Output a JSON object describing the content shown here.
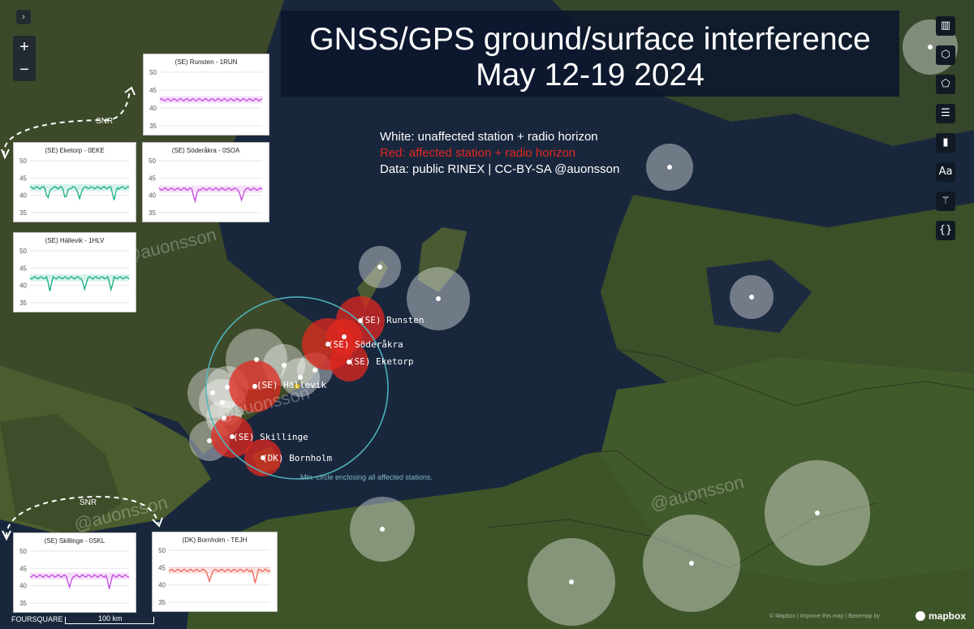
{
  "title": {
    "line1": "GNSS/GPS ground/surface interference",
    "line2": "May 12-19 2024"
  },
  "legend": {
    "white": "White: unaffected station + radio horizon",
    "red": "Red: affected station + radio horizon",
    "data": "Data: public RINEX | CC-BY-SA @auonsson"
  },
  "controls": {
    "expand": "›",
    "zoom_in": "+",
    "zoom_out": "−"
  },
  "toolbar": [
    {
      "name": "book-icon",
      "glyph": "▥"
    },
    {
      "name": "cube-icon",
      "glyph": "⬡"
    },
    {
      "name": "polygon-icon",
      "glyph": "⬠"
    },
    {
      "name": "list-icon",
      "glyph": "☰"
    },
    {
      "name": "bar-chart-icon",
      "glyph": "▮"
    },
    {
      "name": "text-style-icon",
      "glyph": "Aa"
    },
    {
      "name": "magic-wand-icon",
      "glyph": "⚚"
    },
    {
      "name": "code-braces-icon",
      "glyph": "{}"
    }
  ],
  "snr_labels": [
    "SNR",
    "SNR"
  ],
  "watermark": "@auonsson",
  "station_labels": [
    {
      "text": "(SE) Runsten"
    },
    {
      "text": "(SE) Söderåkra"
    },
    {
      "text": "(SE) Eketorp"
    },
    {
      "text": "(SE) Hällevik"
    },
    {
      "text": "(SE) Skillinge"
    },
    {
      "text": "(DK) Bornholm"
    }
  ],
  "min_circle_label": "Min. circle enclosing all affected stations.",
  "colors": {
    "affected": "#e0281f",
    "unaffected": "#ffffff",
    "green": "#1db38a",
    "purple": "#c64fe0",
    "salmon": "#ee6a5e",
    "min_circle": "#4fb8c0"
  },
  "panels": [
    {
      "title": "(SE) Runsten - 1RUN",
      "color": "purple",
      "yticks": [
        "50",
        "45",
        "40",
        "35"
      ],
      "mean": 42.3,
      "dips": []
    },
    {
      "title": "(SE) Eketorp - 0EKE",
      "color": "green",
      "yticks": [
        "50",
        "45",
        "40",
        "35"
      ],
      "mean": 42.2,
      "dips": [
        0.18,
        0.36,
        0.5,
        0.85
      ]
    },
    {
      "title": "(SE) Söderåkra - 0SOA",
      "color": "purple",
      "yticks": [
        "50",
        "45",
        "40",
        "35"
      ],
      "mean": 41.8,
      "dips": [
        0.35,
        0.8
      ]
    },
    {
      "title": "(SE) Hällevik - 1HLV",
      "color": "green",
      "yticks": [
        "50",
        "45",
        "40",
        "35"
      ],
      "mean": 42.2,
      "dips": [
        0.2,
        0.55,
        0.82
      ]
    },
    {
      "title": "(SE) Skillinge - 0SKL",
      "color": "purple",
      "yticks": [
        "50",
        "45",
        "40",
        "35"
      ],
      "mean": 42.8,
      "dips": [
        0.4,
        0.8
      ]
    },
    {
      "title": "(DK) Bornholm - TEJH",
      "color": "salmon",
      "yticks": [
        "50",
        "45",
        "40",
        "35"
      ],
      "mean": 44.2,
      "dips": [
        0.4,
        0.85
      ]
    }
  ],
  "footer": {
    "foursquare": "FOURSQUARE",
    "scale": "100 km",
    "attribution": "© Mapbox | Improve this map | Basemap by",
    "mapbox": "mapbox"
  }
}
